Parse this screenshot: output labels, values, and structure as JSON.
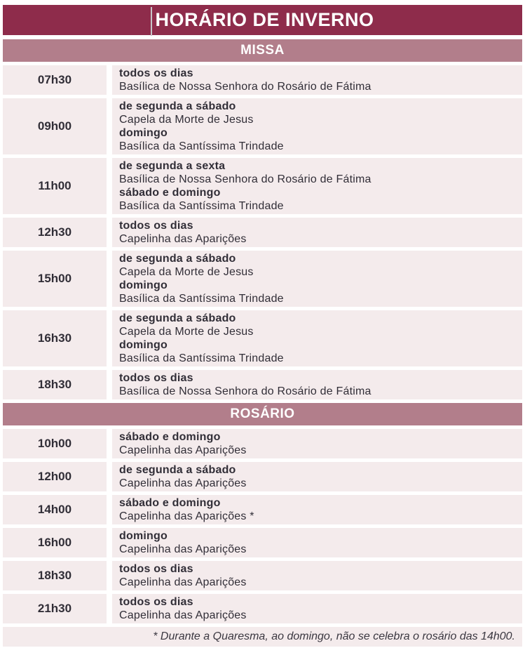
{
  "title": "HORÁRIO DE INVERNO",
  "footnote": "* Durante a Quaresma, ao domingo, não se celebra o rosário das 14h00.",
  "colors": {
    "maroon": "#8e2c4b",
    "mauve": "#b27e8b",
    "row_pink": "#f4ebec",
    "text": "#312e37",
    "header_text": "#ffffff"
  },
  "sections": [
    {
      "label": "MISSA",
      "rows": [
        {
          "time": "07h30",
          "lines": [
            {
              "text": "todos os dias",
              "bold": true
            },
            {
              "text": "Basílica de Nossa Senhora do Rosário de Fátima",
              "bold": false
            }
          ]
        },
        {
          "time": "09h00",
          "lines": [
            {
              "text": "de segunda a sábado",
              "bold": true
            },
            {
              "text": "Capela da Morte de Jesus",
              "bold": false
            },
            {
              "text": "domingo",
              "bold": true
            },
            {
              "text": "Basílica da Santíssima Trindade",
              "bold": false
            }
          ]
        },
        {
          "time": "11h00",
          "lines": [
            {
              "text": "de segunda a sexta",
              "bold": true
            },
            {
              "text": "Basílica de Nossa Senhora do Rosário de Fátima",
              "bold": false
            },
            {
              "text": "sábado e domingo",
              "bold": true
            },
            {
              "text": "Basílica da Santíssima Trindade",
              "bold": false
            }
          ]
        },
        {
          "time": "12h30",
          "lines": [
            {
              "text": "todos os dias",
              "bold": true
            },
            {
              "text": "Capelinha das Aparições",
              "bold": false
            }
          ]
        },
        {
          "time": "15h00",
          "lines": [
            {
              "text": "de segunda a sábado",
              "bold": true
            },
            {
              "text": "Capela da Morte de Jesus",
              "bold": false
            },
            {
              "text": "domingo",
              "bold": true
            },
            {
              "text": "Basílica da Santíssima Trindade",
              "bold": false
            }
          ]
        },
        {
          "time": "16h30",
          "lines": [
            {
              "text": "de segunda a sábado",
              "bold": true
            },
            {
              "text": "Capela da Morte de Jesus",
              "bold": false
            },
            {
              "text": "domingo",
              "bold": true
            },
            {
              "text": "Basílica da Santíssima Trindade",
              "bold": false
            }
          ]
        },
        {
          "time": "18h30",
          "lines": [
            {
              "text": "todos os dias",
              "bold": true
            },
            {
              "text": "Basílica de Nossa Senhora do Rosário de Fátima",
              "bold": false
            }
          ]
        }
      ]
    },
    {
      "label": "ROSÁRIO",
      "rows": [
        {
          "time": "10h00",
          "lines": [
            {
              "text": "sábado e domingo",
              "bold": true
            },
            {
              "text": "Capelinha das Aparições",
              "bold": false
            }
          ]
        },
        {
          "time": "12h00",
          "lines": [
            {
              "text": "de segunda a sábado",
              "bold": true
            },
            {
              "text": "Capelinha das Aparições",
              "bold": false
            }
          ]
        },
        {
          "time": "14h00",
          "lines": [
            {
              "text": "sábado e domingo",
              "bold": true
            },
            {
              "text": "Capelinha das Aparições *",
              "bold": false
            }
          ]
        },
        {
          "time": "16h00",
          "lines": [
            {
              "text": "domingo",
              "bold": true
            },
            {
              "text": "Capelinha das Aparições",
              "bold": false
            }
          ]
        },
        {
          "time": "18h30",
          "lines": [
            {
              "text": "todos os dias",
              "bold": true
            },
            {
              "text": "Capelinha das Aparições",
              "bold": false
            }
          ]
        },
        {
          "time": "21h30",
          "lines": [
            {
              "text": "todos os dias",
              "bold": true
            },
            {
              "text": "Capelinha das Aparições",
              "bold": false
            }
          ]
        }
      ]
    }
  ]
}
